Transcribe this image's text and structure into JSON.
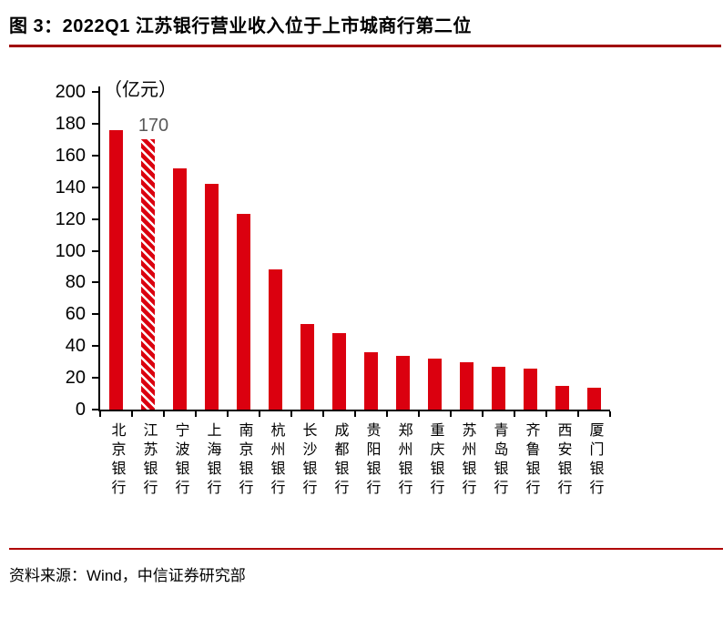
{
  "figure": {
    "title": "图 3：2022Q1 江苏银行营业收入位于上市城商行第二位",
    "source": "资料来源：Wind，中信证券研究部"
  },
  "chart_data": {
    "type": "bar",
    "unit_label": "（亿元）",
    "categories": [
      "北京银行",
      "江苏银行",
      "宁波银行",
      "上海银行",
      "南京银行",
      "杭州银行",
      "长沙银行",
      "成都银行",
      "贵阳银行",
      "郑州银行",
      "重庆银行",
      "苏州银行",
      "青岛银行",
      "齐鲁银行",
      "西安银行",
      "厦门银行"
    ],
    "values": [
      176,
      170,
      152,
      142,
      123,
      88,
      54,
      48,
      36,
      34,
      32,
      30,
      27,
      26,
      15,
      14
    ],
    "highlight_index": 1,
    "highlight_style": "diagonal-hatch",
    "annotation": {
      "text": "170",
      "bar_index": 1,
      "color": "#595959"
    },
    "ylim": [
      0,
      200
    ],
    "yticks": [
      0,
      20,
      40,
      60,
      80,
      100,
      120,
      140,
      160,
      180,
      200
    ],
    "grid": false,
    "legend": false,
    "bar_color": "#db000f"
  },
  "colors": {
    "bar_red": "#db000f",
    "title_rule": "#a00000",
    "footer_rule": "#b00000",
    "annotation_gray": "#595959",
    "axis_black": "#000000"
  }
}
